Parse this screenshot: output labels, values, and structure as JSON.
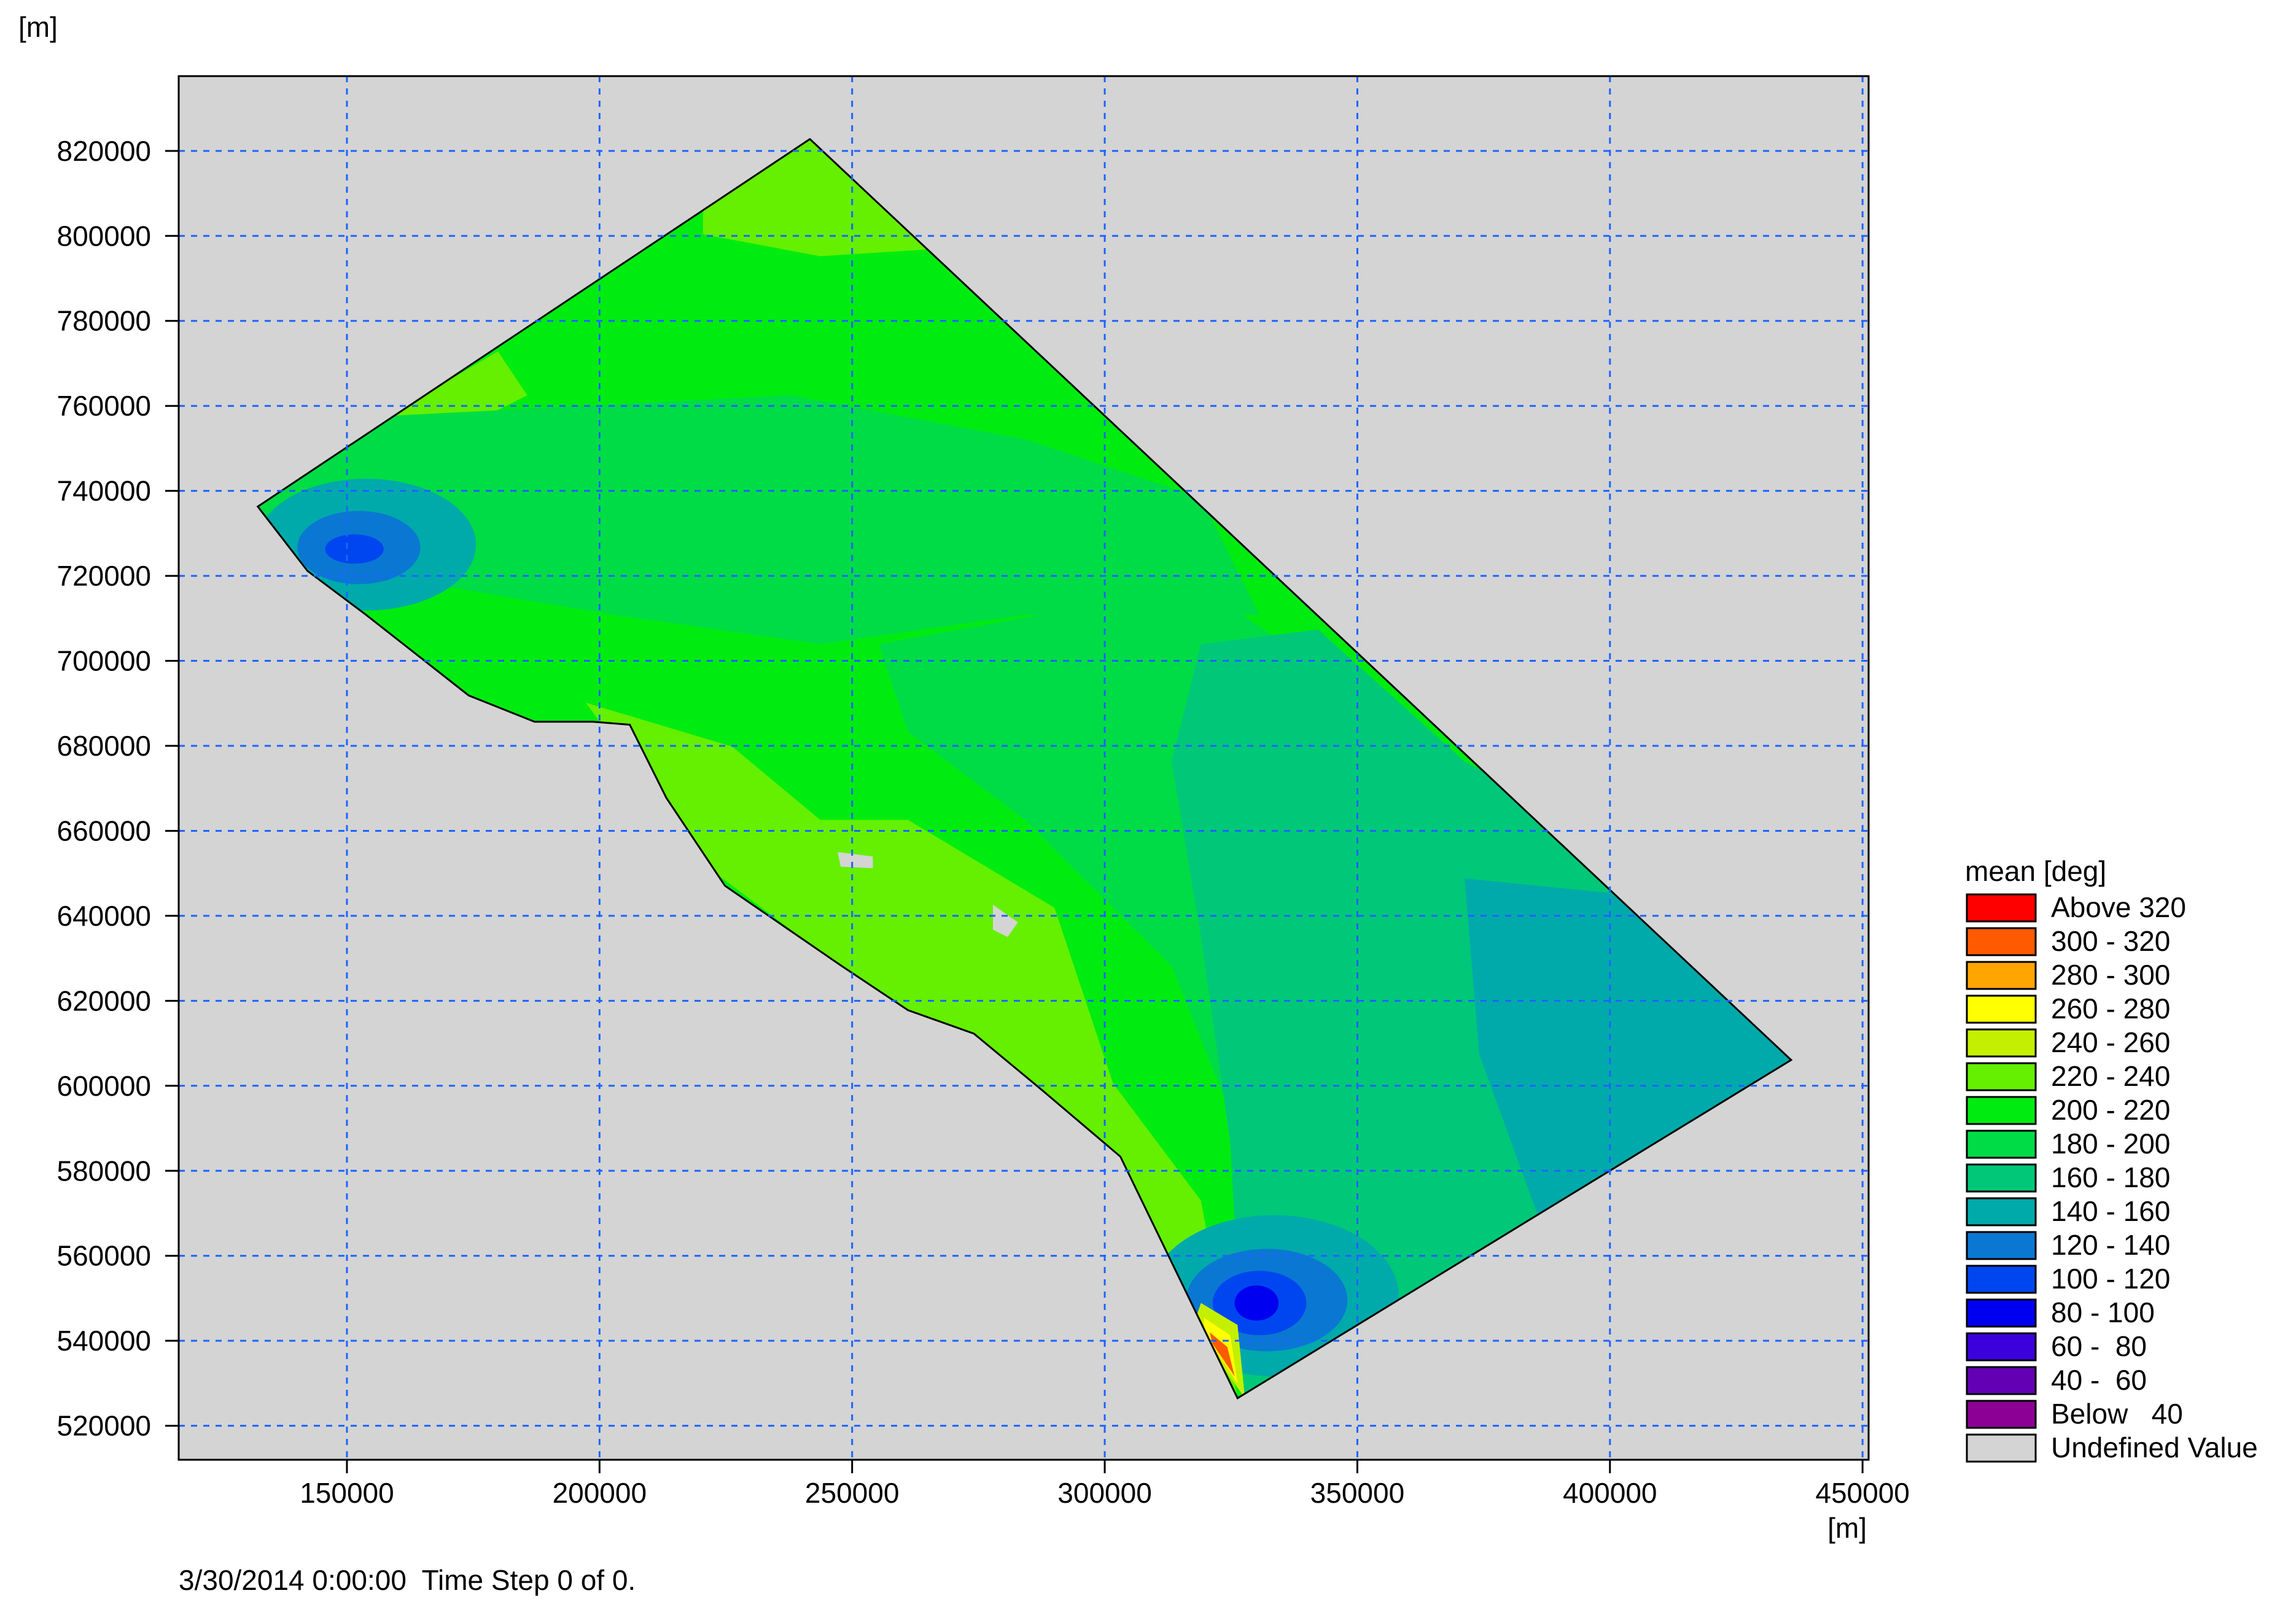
{
  "chart_data": {
    "type": "contour",
    "xlabel": "[m]",
    "ylabel": "[m]",
    "xlim": [
      116700,
      451200
    ],
    "ylim": [
      512000,
      837600
    ],
    "xticks": [
      150000,
      200000,
      250000,
      300000,
      350000,
      400000,
      450000
    ],
    "yticks": [
      520000,
      540000,
      560000,
      580000,
      600000,
      620000,
      640000,
      660000,
      680000,
      700000,
      720000,
      740000,
      760000,
      780000,
      800000,
      820000
    ],
    "grid": true,
    "legend": {
      "title": "mean [deg]",
      "position": "right",
      "items": [
        {
          "label": "Above 320",
          "color": "#ff0000"
        },
        {
          "label": "300 - 320",
          "color": "#ff5a00"
        },
        {
          "label": "280 - 300",
          "color": "#ffa500"
        },
        {
          "label": "260 - 280",
          "color": "#ffff00"
        },
        {
          "label": "240 - 260",
          "color": "#c4f000"
        },
        {
          "label": "220 - 240",
          "color": "#64f000"
        },
        {
          "label": "200 - 220",
          "color": "#00ec10"
        },
        {
          "label": "180 - 200",
          "color": "#00dc46"
        },
        {
          "label": "160 - 180",
          "color": "#00c878"
        },
        {
          "label": "140 - 160",
          "color": "#00aaaa"
        },
        {
          "label": "120 - 140",
          "color": "#0a78d2"
        },
        {
          "label": "100 - 120",
          "color": "#0046f0"
        },
        {
          "label": "80 - 100",
          "color": "#0000f0"
        },
        {
          "label": "60 -  80",
          "color": "#3c00dc"
        },
        {
          "label": "40 -  60",
          "color": "#6400b4"
        },
        {
          "label": "Below   40",
          "color": "#8c0096"
        },
        {
          "label": "Undefined Value",
          "color": "#d4d4d4"
        }
      ]
    },
    "footer": "3/30/2014 0:00:00  Time Step 0 of 0."
  }
}
